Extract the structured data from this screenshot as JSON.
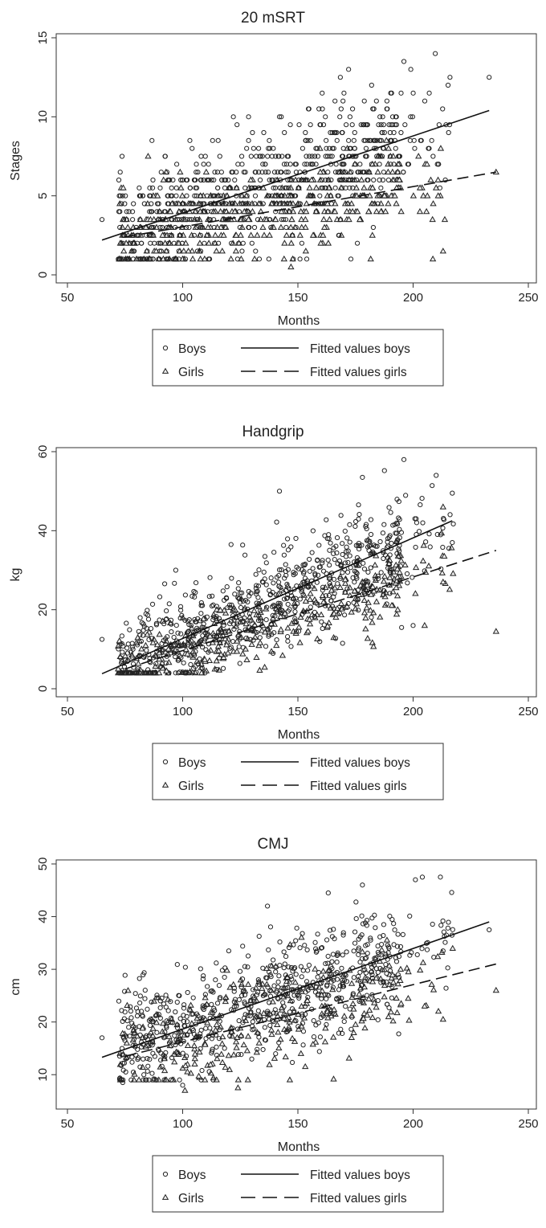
{
  "legend": {
    "boys_label": "Boys",
    "girls_label": "Girls",
    "fitted_boys_label": "Fitted values boys",
    "fitted_girls_label": "Fitted values girls"
  },
  "chart_data": [
    {
      "type": "scatter",
      "title": "20 mSRT",
      "xlabel": "Months",
      "ylabel": "Stages",
      "xlim": [
        50,
        250
      ],
      "ylim": [
        0,
        15
      ],
      "xticks": [
        50,
        100,
        150,
        200,
        250
      ],
      "yticks": [
        0,
        5,
        10,
        15
      ],
      "grid": false,
      "legend_position": "bottom",
      "x_range": [
        65,
        236
      ],
      "boys_fit": [
        [
          65,
          2.2
        ],
        [
          233,
          10.4
        ]
      ],
      "girls_fit": [
        [
          75,
          2.4
        ],
        [
          236,
          6.5
        ]
      ],
      "boys_noise": 1.9,
      "girls_noise": 1.3,
      "boys_n": 700,
      "girls_n": 450,
      "rounding": 0.5,
      "boys_points": [
        [
          65,
          3.5
        ],
        [
          196,
          13.5
        ],
        [
          172,
          13.0
        ],
        [
          233,
          12.5
        ],
        [
          216,
          12.5
        ],
        [
          199,
          13.0
        ],
        [
          182,
          12.0
        ],
        [
          122,
          10.0
        ],
        [
          148,
          1.0
        ],
        [
          207,
          11.5
        ],
        [
          173,
          1.0
        ]
      ],
      "girls_points": [
        [
          85,
          7.5
        ],
        [
          147,
          0.5
        ],
        [
          213,
          1.5
        ],
        [
          236,
          6.5
        ],
        [
          212,
          8.0
        ],
        [
          203,
          5.5
        ]
      ]
    },
    {
      "type": "scatter",
      "title": "Handgrip",
      "xlabel": "Months",
      "ylabel": "kg",
      "xlim": [
        50,
        250
      ],
      "ylim": [
        0,
        60
      ],
      "xticks": [
        50,
        100,
        150,
        200,
        250
      ],
      "yticks": [
        0,
        20,
        40,
        60
      ],
      "grid": false,
      "legend_position": "bottom",
      "x_range": [
        65,
        236
      ],
      "boys_fit": [
        [
          65,
          3.8
        ],
        [
          217,
          42.5
        ]
      ],
      "girls_fit": [
        [
          75,
          5.0
        ],
        [
          236,
          35.0
        ]
      ],
      "boys_noise": 6.5,
      "girls_noise": 4.5,
      "boys_n": 700,
      "girls_n": 380,
      "rounding": 0,
      "boys_points": [
        [
          65,
          12.5
        ],
        [
          196,
          58.0
        ],
        [
          210,
          54.0
        ],
        [
          217,
          49.5
        ],
        [
          142,
          50.0
        ],
        [
          97,
          30.0
        ],
        [
          200,
          16.0
        ],
        [
          195,
          15.5
        ],
        [
          217,
          37.0
        ],
        [
          178,
          53.5
        ],
        [
          121,
          36.5
        ]
      ],
      "girls_points": [
        [
          236,
          14.5
        ],
        [
          213,
          27.0
        ],
        [
          205,
          16.0
        ],
        [
          213,
          46.0
        ],
        [
          72,
          5.0
        ],
        [
          93,
          4.5
        ]
      ]
    },
    {
      "type": "scatter",
      "title": "CMJ",
      "xlabel": "Months",
      "ylabel": "cm",
      "xlim": [
        50,
        250
      ],
      "ylim": [
        5,
        50
      ],
      "xticks": [
        50,
        100,
        150,
        200,
        250
      ],
      "yticks": [
        10,
        20,
        30,
        40,
        50
      ],
      "grid": false,
      "legend_position": "bottom",
      "x_range": [
        65,
        236
      ],
      "boys_fit": [
        [
          65,
          13.3
        ],
        [
          233,
          39.0
        ]
      ],
      "girls_fit": [
        [
          75,
          13.5
        ],
        [
          236,
          31.0
        ]
      ],
      "boys_noise": 5.2,
      "girls_noise": 4.8,
      "boys_n": 650,
      "girls_n": 320,
      "rounding": 0,
      "boys_points": [
        [
          65,
          17.0
        ],
        [
          204,
          47.5
        ],
        [
          201,
          47.0
        ],
        [
          178,
          46.0
        ],
        [
          233,
          37.5
        ],
        [
          213,
          33.5
        ],
        [
          100,
          8.0
        ],
        [
          74,
          8.5
        ],
        [
          120,
          33.5
        ]
      ],
      "girls_points": [
        [
          236,
          26.0
        ],
        [
          213,
          20.5
        ],
        [
          205,
          23.0
        ],
        [
          101,
          7.0
        ],
        [
          124,
          7.5
        ]
      ]
    }
  ]
}
